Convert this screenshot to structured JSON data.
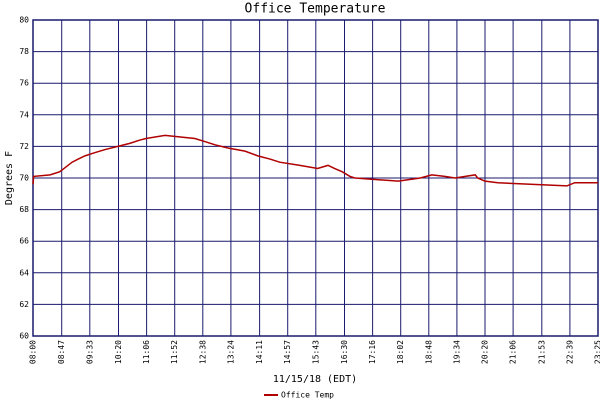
{
  "chart_data": {
    "type": "line",
    "title": "Office Temperature",
    "x_label": "11/15/18 (EDT)",
    "y_label": "Degrees F",
    "series": [
      {
        "name": "Office Temp",
        "color": "#b00000",
        "x": [
          480,
          481,
          508,
          524,
          534,
          544,
          554,
          565,
          581,
          598,
          619,
          639,
          655,
          665,
          696,
          745,
          762,
          778,
          799,
          827,
          848,
          868,
          884,
          917,
          946,
          963,
          974,
          986,
          999,
          1007,
          1078,
          1114,
          1133,
          1154,
          1171,
          1204,
          1208,
          1220,
          1241,
          1354,
          1367,
          1405
        ],
        "values": [
          69.6,
          70.1,
          70.2,
          70.4,
          70.7,
          71.0,
          71.2,
          71.4,
          71.6,
          71.8,
          72.0,
          72.2,
          72.4,
          72.5,
          72.7,
          72.5,
          72.3,
          72.1,
          71.9,
          71.7,
          71.4,
          71.2,
          71.0,
          70.8,
          70.6,
          70.8,
          70.6,
          70.4,
          70.1,
          70.0,
          69.8,
          70.0,
          70.2,
          70.1,
          70.0,
          70.2,
          70.0,
          69.8,
          69.7,
          69.5,
          69.7,
          69.7
        ]
      }
    ],
    "xlim": [
      480,
      1405
    ],
    "xticks": [
      {
        "value": 480,
        "label": "08:00"
      },
      {
        "value": 527,
        "label": "08:47"
      },
      {
        "value": 573,
        "label": "09:33"
      },
      {
        "value": 620,
        "label": "10:20"
      },
      {
        "value": 666,
        "label": "11:06"
      },
      {
        "value": 712,
        "label": "11:52"
      },
      {
        "value": 758,
        "label": "12:38"
      },
      {
        "value": 804,
        "label": "13:24"
      },
      {
        "value": 851,
        "label": "14:11"
      },
      {
        "value": 897,
        "label": "14:57"
      },
      {
        "value": 943,
        "label": "15:43"
      },
      {
        "value": 990,
        "label": "16:30"
      },
      {
        "value": 1036,
        "label": "17:16"
      },
      {
        "value": 1082,
        "label": "18:02"
      },
      {
        "value": 1128,
        "label": "18:48"
      },
      {
        "value": 1174,
        "label": "19:34"
      },
      {
        "value": 1220,
        "label": "20:20"
      },
      {
        "value": 1266,
        "label": "21:06"
      },
      {
        "value": 1313,
        "label": "21:53"
      },
      {
        "value": 1359,
        "label": "22:39"
      },
      {
        "value": 1405,
        "label": "23:25"
      }
    ],
    "ylim": [
      60,
      80
    ],
    "yticks": [
      60,
      62,
      64,
      66,
      68,
      70,
      72,
      74,
      76,
      78,
      80
    ],
    "grid": true
  }
}
